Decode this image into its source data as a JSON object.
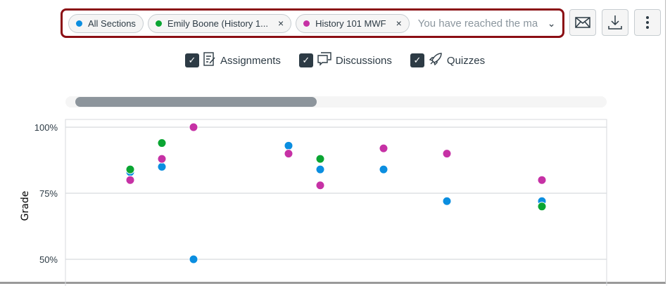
{
  "filter": {
    "pills": [
      {
        "label": "All Sections",
        "color": "#0b8ee0",
        "removable": false
      },
      {
        "label": "Emily Boone (History 1...",
        "color": "#0aa532",
        "removable": true
      },
      {
        "label": "History 101 MWF",
        "color": "#c631a5",
        "removable": true
      }
    ],
    "placeholder": "You have reached the max",
    "remove_glyph": "×"
  },
  "buttons": {
    "message": "envelope-icon",
    "download": "download-icon",
    "more": "more-vertical-icon"
  },
  "types": [
    {
      "label": "Assignments",
      "checked": true,
      "icon": "assignment-icon"
    },
    {
      "label": "Discussions",
      "checked": true,
      "icon": "discussion-icon"
    },
    {
      "label": "Quizzes",
      "checked": true,
      "icon": "quiz-rocket-icon"
    }
  ],
  "scrollbar": {
    "position_fraction": 0.0,
    "visible_fraction": 0.45
  },
  "chart_data": {
    "type": "scatter",
    "ylabel": "Grade",
    "ylim": [
      40,
      105
    ],
    "yticks": [
      "100%",
      "75%",
      "50%"
    ],
    "ytick_values": [
      100,
      75,
      50
    ],
    "grid": true,
    "x": [
      1,
      2,
      3,
      6,
      7,
      9,
      11,
      14
    ],
    "series": [
      {
        "name": "All Sections",
        "color": "#0b8ee0",
        "values": [
          83,
          85,
          50,
          93,
          84,
          84,
          72,
          72
        ]
      },
      {
        "name": "Emily Boone (History 1...",
        "color": "#0aa532",
        "values": [
          84,
          94,
          null,
          null,
          88,
          null,
          null,
          70
        ]
      },
      {
        "name": "History 101 MWF",
        "color": "#c631a5",
        "values": [
          80,
          88,
          100,
          90,
          78,
          92,
          90,
          80
        ]
      }
    ]
  }
}
